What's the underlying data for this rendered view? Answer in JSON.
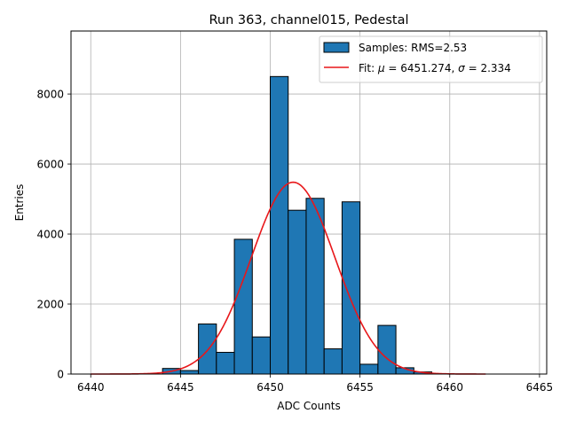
{
  "chart_data": {
    "type": "bar",
    "title": "Run 363, channel015, Pedestal",
    "xlabel": "ADC Counts",
    "ylabel": "Entries",
    "xlim": [
      6438.9,
      6465.4
    ],
    "ylim": [
      0,
      9800
    ],
    "grid": true,
    "legend_position": "top-right",
    "xticks": [
      6440,
      6445,
      6450,
      6455,
      6460,
      6465
    ],
    "yticks": [
      0,
      2000,
      4000,
      6000,
      8000
    ],
    "histogram": {
      "name": "Samples: RMS=2.53",
      "bin_width": 1,
      "color": "#1f77b4",
      "edge_color": "#000000",
      "bins": [
        {
          "left": 6444,
          "value": 160
        },
        {
          "left": 6445,
          "value": 100
        },
        {
          "left": 6446,
          "value": 1430
        },
        {
          "left": 6447,
          "value": 620
        },
        {
          "left": 6448,
          "value": 3850
        },
        {
          "left": 6449,
          "value": 1060
        },
        {
          "left": 6450,
          "value": 8500
        },
        {
          "left": 6451,
          "value": 4680
        },
        {
          "left": 6452,
          "value": 5020
        },
        {
          "left": 6453,
          "value": 720
        },
        {
          "left": 6454,
          "value": 4920
        },
        {
          "left": 6455,
          "value": 280
        },
        {
          "left": 6456,
          "value": 1390
        },
        {
          "left": 6457,
          "value": 180
        },
        {
          "left": 6458,
          "value": 60
        },
        {
          "left": 6459,
          "value": 10
        }
      ]
    },
    "fit": {
      "name_prefix": "Fit: ",
      "mu_symbol": "μ",
      "mu_text": " = 6451.274, ",
      "sigma_symbol": "σ",
      "sigma_text": " = 2.334",
      "mu": 6451.274,
      "sigma": 2.334,
      "amplitude": 5480,
      "x_range": [
        6440,
        6462
      ],
      "color": "#e8171a"
    }
  }
}
